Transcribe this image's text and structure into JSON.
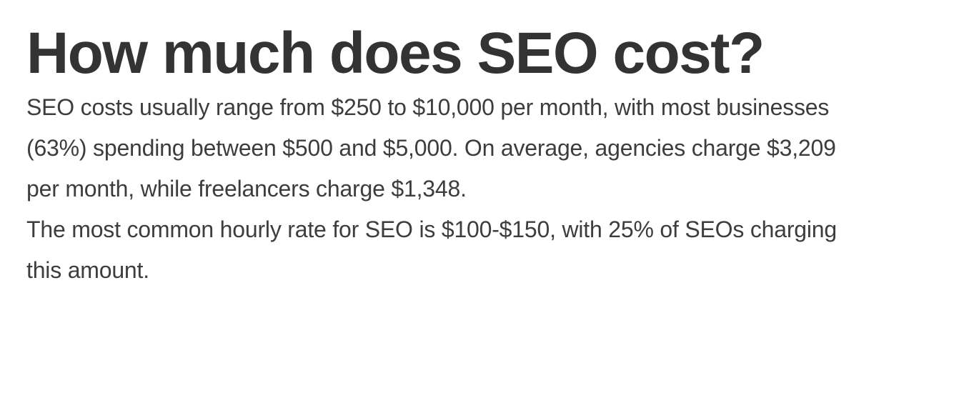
{
  "colors": {
    "bg": "#ffffff",
    "heading": "#333333",
    "body": "#3d3d3d"
  },
  "article": {
    "heading": "How much does SEO cost?",
    "paragraphs": [
      {
        "lines": [
          "SEO costs usually range from $250 to $10,000 per month, with most businesses",
          "(63%) spending between $500 and $5,000. On average, agencies charge $3,209",
          "per month, while freelancers charge $1,348."
        ]
      },
      {
        "lines": [
          "The most common hourly rate for SEO is $100-$150, with 25% of SEOs charging",
          "this amount."
        ]
      }
    ]
  }
}
